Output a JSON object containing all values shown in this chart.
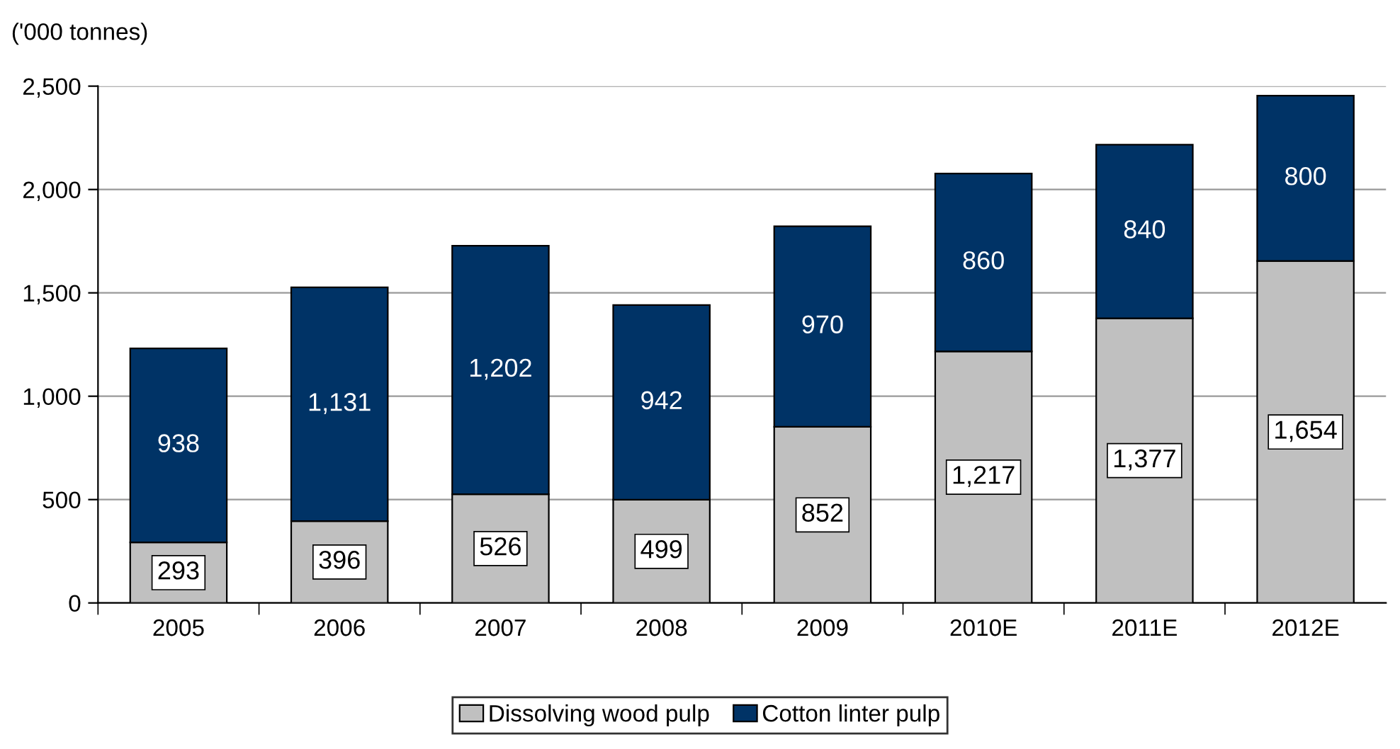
{
  "chart_data": {
    "type": "bar",
    "stacked": true,
    "ylabel": "('000 tonnes)",
    "categories": [
      "2005",
      "2006",
      "2007",
      "2008",
      "2009",
      "2010E",
      "2011E",
      "2012E"
    ],
    "series": [
      {
        "name": "Dissolving wood pulp",
        "color": "#c0c0c0",
        "values": [
          293,
          396,
          526,
          499,
          852,
          1217,
          1377,
          1654
        ],
        "value_labels": [
          "293",
          "396",
          "526",
          "499",
          "852",
          "1,217",
          "1,377",
          "1,654"
        ]
      },
      {
        "name": "Cotton linter pulp",
        "color": "#003366",
        "values": [
          938,
          1131,
          1202,
          942,
          970,
          860,
          840,
          800
        ],
        "value_labels": [
          "938",
          "1,131",
          "1,202",
          "942",
          "970",
          "860",
          "840",
          "800"
        ]
      }
    ],
    "ylim": [
      0,
      2500
    ],
    "yticks": [
      {
        "value": 0,
        "label": "0"
      },
      {
        "value": 500,
        "label": "500"
      },
      {
        "value": 1000,
        "label": "1,000"
      },
      {
        "value": 1500,
        "label": "1,500"
      },
      {
        "value": 2000,
        "label": "2,000"
      },
      {
        "value": 2500,
        "label": "2,500"
      }
    ],
    "grid": "y",
    "legend": "bottom"
  }
}
